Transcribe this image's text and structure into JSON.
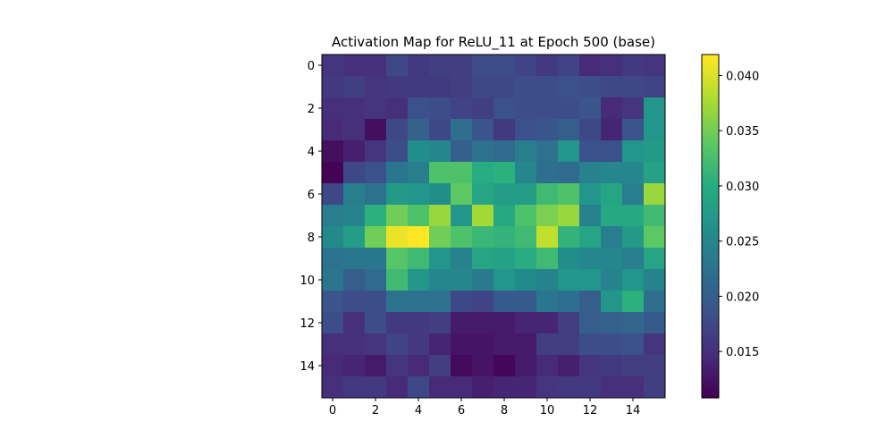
{
  "chart_data": {
    "type": "heatmap",
    "title": "Activation Map for ReLU_11 at Epoch 500 (base)",
    "xlabel": "",
    "ylabel": "",
    "colormap": "viridis",
    "vmin": 0.0108,
    "vmax": 0.0419,
    "x_ticks": [
      "0",
      "2",
      "4",
      "6",
      "8",
      "10",
      "12",
      "14"
    ],
    "y_ticks": [
      "0",
      "2",
      "4",
      "6",
      "8",
      "10",
      "12",
      "14"
    ],
    "colorbar_ticks": [
      "0.015",
      "0.020",
      "0.025",
      "0.030",
      "0.035",
      "0.040"
    ],
    "values": [
      [
        0.0155,
        0.015,
        0.015,
        0.0175,
        0.016,
        0.0165,
        0.0165,
        0.018,
        0.018,
        0.017,
        0.016,
        0.017,
        0.0145,
        0.015,
        0.016,
        0.0155
      ],
      [
        0.016,
        0.0165,
        0.0155,
        0.016,
        0.016,
        0.016,
        0.0165,
        0.0175,
        0.0175,
        0.018,
        0.018,
        0.0185,
        0.018,
        0.0175,
        0.0175,
        0.017
      ],
      [
        0.015,
        0.015,
        0.0155,
        0.015,
        0.0185,
        0.018,
        0.017,
        0.0165,
        0.0185,
        0.018,
        0.018,
        0.018,
        0.019,
        0.0145,
        0.0155,
        0.027
      ],
      [
        0.0145,
        0.015,
        0.012,
        0.0175,
        0.0205,
        0.0175,
        0.022,
        0.019,
        0.016,
        0.0185,
        0.019,
        0.02,
        0.0175,
        0.014,
        0.019,
        0.027
      ],
      [
        0.012,
        0.0135,
        0.0155,
        0.018,
        0.026,
        0.025,
        0.02,
        0.0225,
        0.0215,
        0.024,
        0.0225,
        0.027,
        0.0185,
        0.0185,
        0.027,
        0.0275
      ],
      [
        0.011,
        0.0175,
        0.0185,
        0.023,
        0.024,
        0.033,
        0.033,
        0.03,
        0.0305,
        0.025,
        0.022,
        0.0215,
        0.0245,
        0.025,
        0.025,
        0.0285
      ],
      [
        0.0175,
        0.024,
        0.0225,
        0.0275,
        0.027,
        0.026,
        0.034,
        0.029,
        0.028,
        0.028,
        0.032,
        0.033,
        0.027,
        0.029,
        0.024,
        0.037
      ],
      [
        0.024,
        0.0245,
        0.0305,
        0.035,
        0.033,
        0.037,
        0.027,
        0.0375,
        0.0295,
        0.033,
        0.0355,
        0.037,
        0.0245,
        0.0295,
        0.0295,
        0.032
      ],
      [
        0.0255,
        0.028,
        0.035,
        0.041,
        0.0419,
        0.035,
        0.033,
        0.0315,
        0.031,
        0.032,
        0.039,
        0.031,
        0.029,
        0.024,
        0.0275,
        0.034
      ],
      [
        0.0225,
        0.023,
        0.023,
        0.0335,
        0.032,
        0.027,
        0.0245,
        0.029,
        0.0285,
        0.03,
        0.032,
        0.026,
        0.025,
        0.025,
        0.024,
        0.029
      ],
      [
        0.023,
        0.02,
        0.0215,
        0.032,
        0.027,
        0.025,
        0.025,
        0.0235,
        0.027,
        0.0255,
        0.0245,
        0.027,
        0.027,
        0.0245,
        0.027,
        0.0245
      ],
      [
        0.019,
        0.018,
        0.018,
        0.0225,
        0.0225,
        0.0225,
        0.0175,
        0.017,
        0.0195,
        0.0195,
        0.023,
        0.022,
        0.02,
        0.027,
        0.0305,
        0.022
      ],
      [
        0.018,
        0.015,
        0.018,
        0.016,
        0.016,
        0.0165,
        0.013,
        0.013,
        0.013,
        0.014,
        0.014,
        0.0165,
        0.02,
        0.0205,
        0.021,
        0.0195
      ],
      [
        0.015,
        0.015,
        0.0155,
        0.017,
        0.016,
        0.014,
        0.0125,
        0.0125,
        0.013,
        0.013,
        0.0165,
        0.0165,
        0.018,
        0.018,
        0.0185,
        0.0155
      ],
      [
        0.0145,
        0.014,
        0.013,
        0.0155,
        0.0145,
        0.0165,
        0.0115,
        0.0125,
        0.0112,
        0.013,
        0.0145,
        0.0135,
        0.0155,
        0.016,
        0.0165,
        0.0165
      ],
      [
        0.015,
        0.016,
        0.016,
        0.0145,
        0.0175,
        0.0145,
        0.0145,
        0.0135,
        0.014,
        0.014,
        0.0155,
        0.016,
        0.016,
        0.015,
        0.015,
        0.0165
      ]
    ]
  }
}
